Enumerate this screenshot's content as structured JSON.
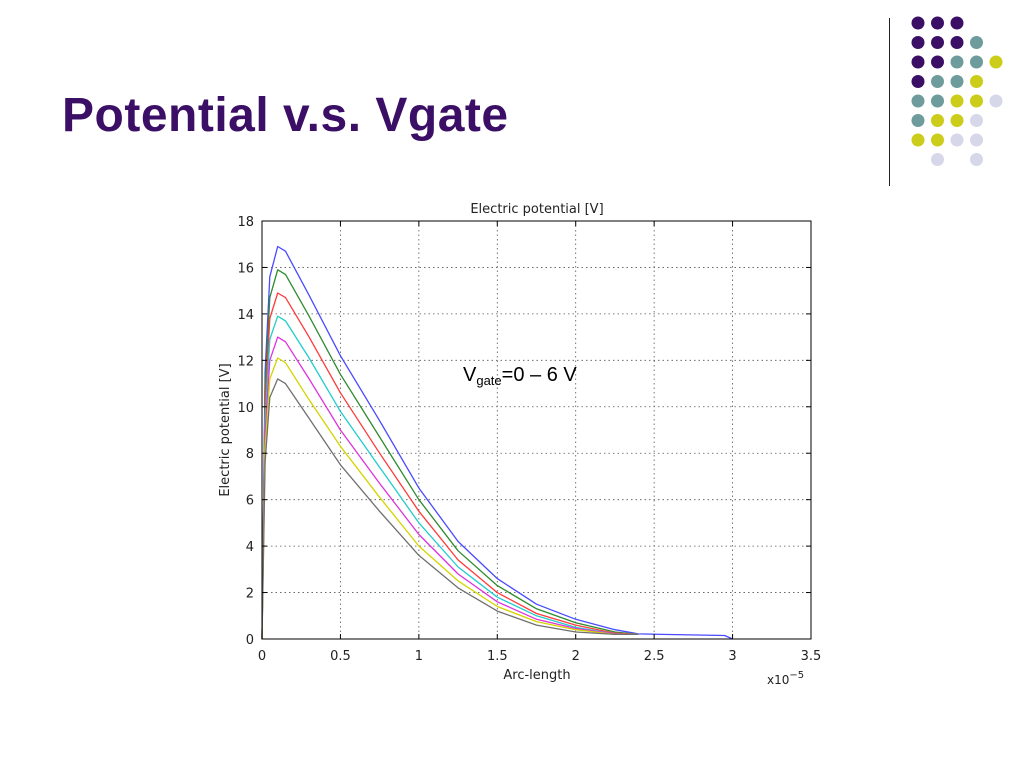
{
  "slide": {
    "title": "Potential v.s. Vgate",
    "dot_colors": [
      "#3b0f66",
      "#6e9b9b",
      "#cccc1a",
      "#d7d7ea"
    ]
  },
  "annotation": {
    "prefix": "V",
    "subscript": "gate",
    "suffix": "=0 – 6 V"
  },
  "chart_data": {
    "type": "line",
    "title": "Electric potential [V]",
    "xlabel": "Arc-length",
    "ylabel": "Electric potential [V]",
    "x_exponent_label": "x10",
    "x_exponent": "−5",
    "xlim": [
      0,
      3.5
    ],
    "ylim": [
      0,
      18
    ],
    "xticks": [
      "0",
      "0.5",
      "1",
      "1.5",
      "2",
      "2.5",
      "3",
      "3.5"
    ],
    "yticks": [
      "0",
      "2",
      "4",
      "6",
      "8",
      "10",
      "12",
      "14",
      "16",
      "18"
    ],
    "grid": true,
    "series": [
      {
        "color": "#4a4aff",
        "peak": 16.9,
        "end_x": 2.55,
        "x": [
          0,
          0.02,
          0.05,
          0.1,
          0.15,
          0.3,
          0.5,
          0.75,
          1.0,
          1.25,
          1.5,
          1.75,
          2.0,
          2.25,
          2.4,
          2.55,
          2.95,
          3.0
        ],
        "y": [
          0,
          11.5,
          15.6,
          16.9,
          16.7,
          14.8,
          12.2,
          9.4,
          6.5,
          4.2,
          2.6,
          1.5,
          0.85,
          0.4,
          0.22,
          0.2,
          0.15,
          0
        ]
      },
      {
        "color": "#2e8b2e",
        "peak": 15.9,
        "x": [
          0,
          0.02,
          0.05,
          0.1,
          0.15,
          0.3,
          0.5,
          0.75,
          1.0,
          1.25,
          1.5,
          1.75,
          2.0,
          2.25,
          2.4
        ],
        "y": [
          0,
          10.8,
          14.7,
          15.9,
          15.7,
          13.9,
          11.4,
          8.7,
          6.0,
          3.8,
          2.3,
          1.3,
          0.7,
          0.3,
          0.2
        ]
      },
      {
        "color": "#ff3a3a",
        "peak": 14.9,
        "x": [
          0,
          0.02,
          0.05,
          0.1,
          0.15,
          0.3,
          0.5,
          0.75,
          1.0,
          1.25,
          1.5,
          1.75,
          2.0,
          2.25,
          2.4
        ],
        "y": [
          0,
          10.1,
          13.8,
          14.9,
          14.7,
          13.0,
          10.6,
          8.0,
          5.5,
          3.4,
          2.0,
          1.1,
          0.6,
          0.25,
          0.2
        ]
      },
      {
        "color": "#22cccc",
        "peak": 13.9,
        "x": [
          0,
          0.02,
          0.05,
          0.1,
          0.15,
          0.3,
          0.5,
          0.75,
          1.0,
          1.25,
          1.5,
          1.75,
          2.0,
          2.25,
          2.4
        ],
        "y": [
          0,
          9.4,
          12.9,
          13.9,
          13.7,
          12.1,
          9.8,
          7.4,
          5.0,
          3.1,
          1.8,
          1.0,
          0.5,
          0.22,
          0.2
        ]
      },
      {
        "color": "#dd33dd",
        "peak": 13.0,
        "x": [
          0,
          0.02,
          0.05,
          0.1,
          0.15,
          0.3,
          0.5,
          0.75,
          1.0,
          1.25,
          1.5,
          1.75,
          2.0,
          2.25,
          2.4
        ],
        "y": [
          0,
          8.8,
          12.0,
          13.0,
          12.8,
          11.2,
          9.0,
          6.7,
          4.5,
          2.8,
          1.6,
          0.85,
          0.45,
          0.22,
          0.2
        ]
      },
      {
        "color": "#d4d400",
        "peak": 12.1,
        "x": [
          0,
          0.02,
          0.05,
          0.1,
          0.15,
          0.3,
          0.5,
          0.75,
          1.0,
          1.25,
          1.5,
          1.75,
          2.0,
          2.25,
          2.4
        ],
        "y": [
          0,
          8.2,
          11.2,
          12.1,
          11.9,
          10.3,
          8.3,
          6.1,
          4.0,
          2.5,
          1.4,
          0.75,
          0.4,
          0.2,
          0.2
        ]
      },
      {
        "color": "#707070",
        "peak": 11.2,
        "x": [
          0,
          0.02,
          0.05,
          0.1,
          0.15,
          0.3,
          0.5,
          0.75,
          1.0,
          1.25,
          1.5,
          1.75,
          2.0,
          2.25,
          2.4
        ],
        "y": [
          0,
          7.6,
          10.4,
          11.2,
          11.0,
          9.5,
          7.5,
          5.5,
          3.6,
          2.2,
          1.2,
          0.6,
          0.3,
          0.2,
          0.2
        ]
      }
    ]
  }
}
